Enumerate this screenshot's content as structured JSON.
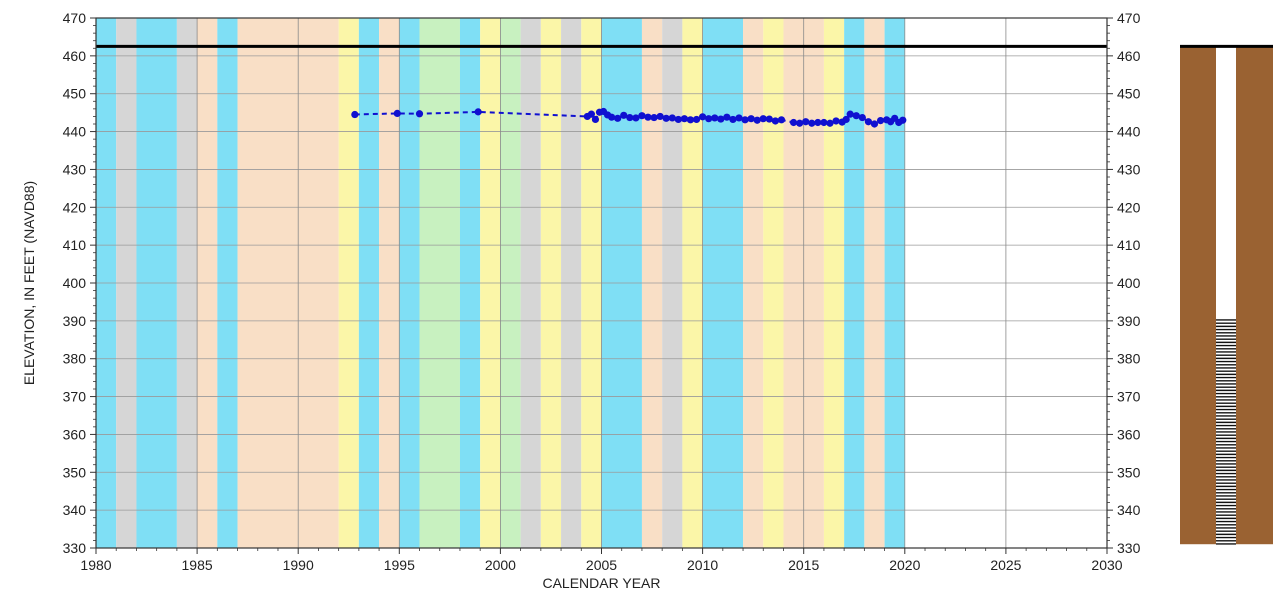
{
  "chart_data": {
    "type": "line",
    "xlabel": "CALENDAR YEAR",
    "ylabel": "ELEVATION, IN FEET (NAVD88)",
    "xlim": [
      1980,
      2030
    ],
    "ylim": [
      330,
      470
    ],
    "x_ticks": [
      1980,
      1985,
      1990,
      1995,
      2000,
      2005,
      2010,
      2015,
      2020,
      2025,
      2030
    ],
    "y_ticks": [
      330,
      340,
      350,
      360,
      370,
      380,
      390,
      400,
      410,
      420,
      430,
      440,
      450,
      460,
      470
    ],
    "grid": true,
    "legend": "none",
    "land_surface_elevation": 462.5,
    "colors": {
      "series": "#1010d0",
      "land_surface": "#000000",
      "soil": "#9a6232",
      "screen": "#111111",
      "period_very_wet": "#7fdff5",
      "period_wet": "#c8f1c0",
      "period_above_normal": "#fbf6a8",
      "period_below_normal": "#f9dfc6",
      "period_dry": "#d6d6d6"
    },
    "background_periods": [
      {
        "start": 1980,
        "end": 1981,
        "category": "very_wet"
      },
      {
        "start": 1981,
        "end": 1982,
        "category": "dry"
      },
      {
        "start": 1982,
        "end": 1984,
        "category": "very_wet"
      },
      {
        "start": 1984,
        "end": 1985,
        "category": "dry"
      },
      {
        "start": 1985,
        "end": 1986,
        "category": "below_normal"
      },
      {
        "start": 1986,
        "end": 1987,
        "category": "very_wet"
      },
      {
        "start": 1987,
        "end": 1992,
        "category": "below_normal"
      },
      {
        "start": 1992,
        "end": 1993,
        "category": "above_normal"
      },
      {
        "start": 1993,
        "end": 1994,
        "category": "very_wet"
      },
      {
        "start": 1994,
        "end": 1995,
        "category": "below_normal"
      },
      {
        "start": 1995,
        "end": 1996,
        "category": "very_wet"
      },
      {
        "start": 1996,
        "end": 1998,
        "category": "wet"
      },
      {
        "start": 1998,
        "end": 1999,
        "category": "very_wet"
      },
      {
        "start": 1999,
        "end": 2000,
        "category": "above_normal"
      },
      {
        "start": 2000,
        "end": 2001,
        "category": "wet"
      },
      {
        "start": 2001,
        "end": 2002,
        "category": "dry"
      },
      {
        "start": 2002,
        "end": 2003,
        "category": "above_normal"
      },
      {
        "start": 2003,
        "end": 2004,
        "category": "dry"
      },
      {
        "start": 2004,
        "end": 2005,
        "category": "above_normal"
      },
      {
        "start": 2005,
        "end": 2007,
        "category": "very_wet"
      },
      {
        "start": 2007,
        "end": 2008,
        "category": "below_normal"
      },
      {
        "start": 2008,
        "end": 2009,
        "category": "dry"
      },
      {
        "start": 2009,
        "end": 2010,
        "category": "above_normal"
      },
      {
        "start": 2010,
        "end": 2012,
        "category": "very_wet"
      },
      {
        "start": 2012,
        "end": 2013,
        "category": "below_normal"
      },
      {
        "start": 2013,
        "end": 2014,
        "category": "above_normal"
      },
      {
        "start": 2014,
        "end": 2016,
        "category": "below_normal"
      },
      {
        "start": 2016,
        "end": 2017,
        "category": "above_normal"
      },
      {
        "start": 2017,
        "end": 2018,
        "category": "very_wet"
      },
      {
        "start": 2018,
        "end": 2019,
        "category": "below_normal"
      },
      {
        "start": 2019,
        "end": 2020,
        "category": "very_wet"
      }
    ],
    "well": {
      "top": 462.5,
      "screen_top": 390.5,
      "screen_bottom": 331
    },
    "series": [
      {
        "x": [
          1992.8,
          1994.9,
          1996.0,
          1998.9,
          2004.3,
          2004.5,
          2004.7,
          2004.9,
          2005.1,
          2005.3,
          2005.5,
          2005.8,
          2006.1,
          2006.4,
          2006.7,
          2007.0,
          2007.3,
          2007.6,
          2007.9,
          2008.2,
          2008.5,
          2008.8,
          2009.1,
          2009.4,
          2009.7,
          2010.0,
          2010.3,
          2010.6,
          2010.9,
          2011.2,
          2011.5,
          2011.8,
          2012.1,
          2012.4,
          2012.7,
          2013.0,
          2013.3,
          2013.6,
          2013.9,
          2014.5,
          2014.8,
          2015.1,
          2015.4,
          2015.7,
          2016.0,
          2016.3,
          2016.6,
          2016.9,
          2017.1,
          2017.3,
          2017.6,
          2017.9,
          2018.2,
          2018.5,
          2018.8,
          2019.1,
          2019.3,
          2019.5,
          2019.7,
          2019.9
        ],
        "y": [
          444.5,
          444.8,
          444.7,
          445.2,
          444.0,
          444.6,
          443.2,
          445.1,
          445.3,
          444.4,
          443.8,
          443.5,
          444.3,
          443.7,
          443.6,
          444.2,
          443.8,
          443.7,
          444.0,
          443.5,
          443.6,
          443.2,
          443.4,
          443.1,
          443.2,
          443.9,
          443.4,
          443.6,
          443.3,
          443.8,
          443.2,
          443.6,
          443.1,
          443.4,
          443.0,
          443.4,
          443.3,
          442.8,
          443.1,
          442.4,
          442.2,
          442.6,
          442.2,
          442.4,
          442.4,
          442.2,
          442.8,
          442.5,
          443.2,
          444.6,
          444.2,
          443.7,
          442.6,
          442.0,
          442.9,
          443.1,
          442.6,
          443.5,
          442.4,
          443.0
        ]
      }
    ]
  }
}
